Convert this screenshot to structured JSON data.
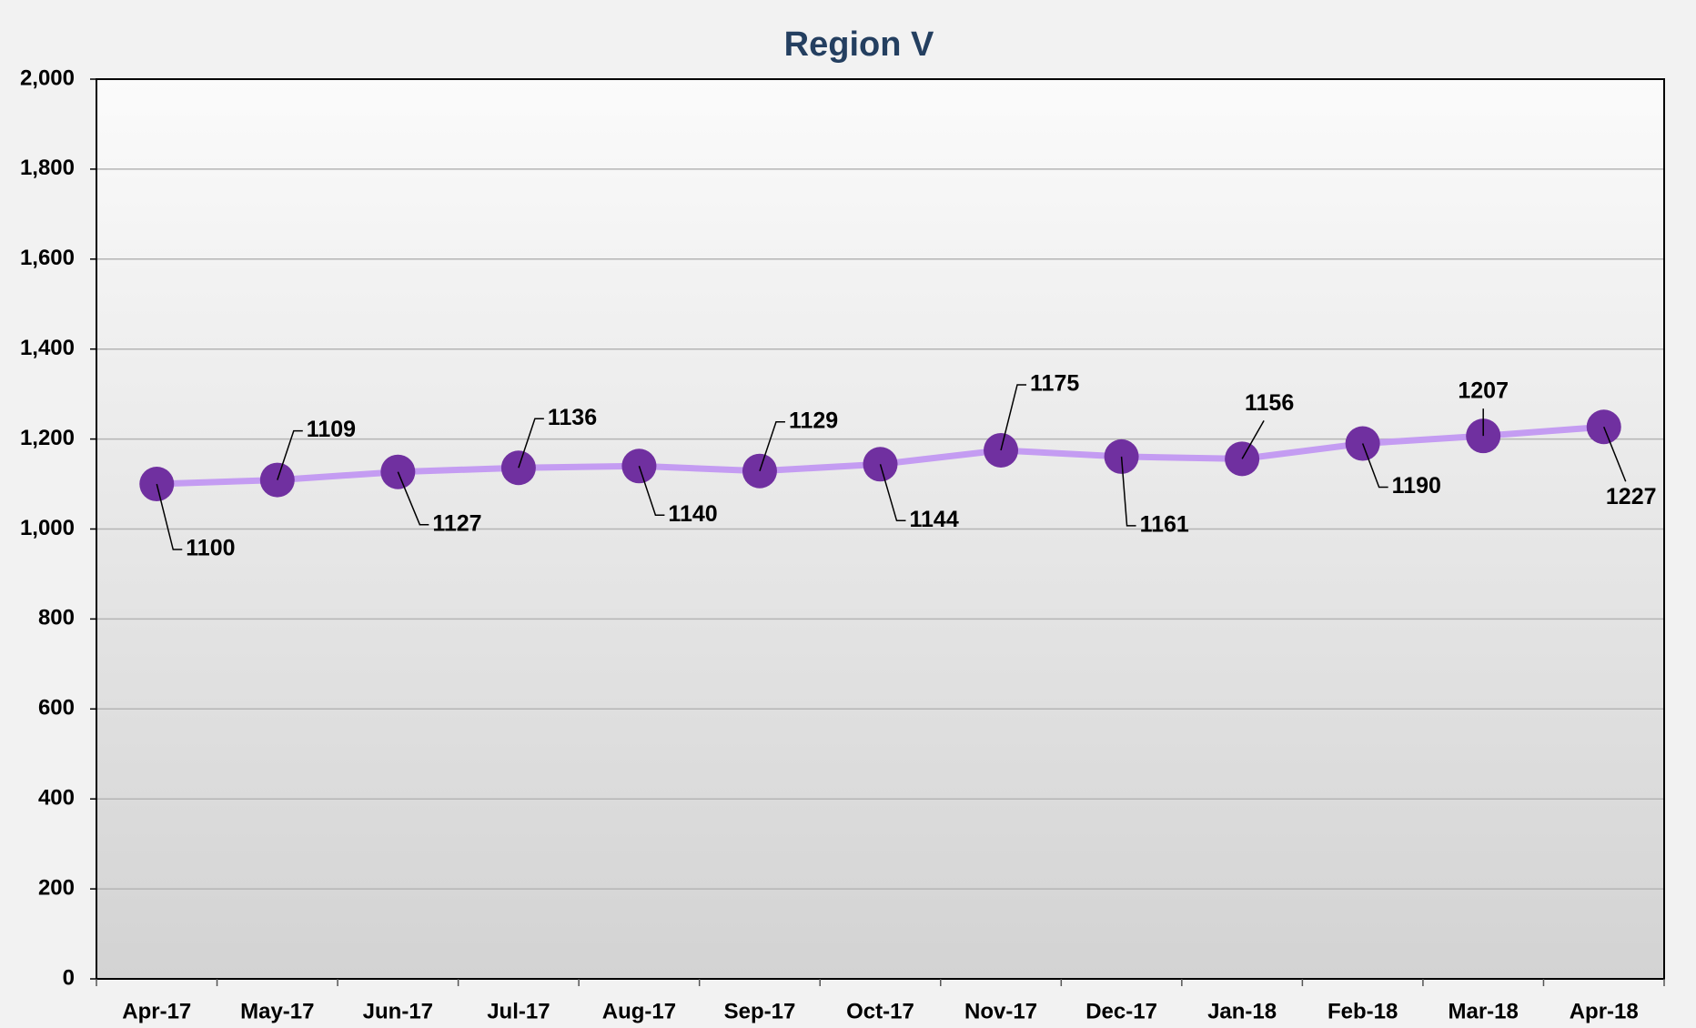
{
  "chart_data": {
    "type": "line",
    "title": "Region V",
    "categories": [
      "Apr-17",
      "May-17",
      "Jun-17",
      "Jul-17",
      "Aug-17",
      "Sep-17",
      "Oct-17",
      "Nov-17",
      "Dec-17",
      "Jan-18",
      "Feb-18",
      "Mar-18",
      "Apr-18"
    ],
    "series": [
      {
        "name": "Region V",
        "color": "#c49cf2",
        "marker_color": "#7030a0",
        "values": [
          1100,
          1109,
          1127,
          1136,
          1140,
          1129,
          1144,
          1175,
          1161,
          1156,
          1190,
          1207,
          1227
        ]
      }
    ],
    "ylim": [
      0,
      2000
    ],
    "yticks": [
      0,
      200,
      400,
      600,
      800,
      {
        "value": 1000,
        "label": "1,000"
      },
      {
        "value": 1200,
        "label": "1,200"
      },
      {
        "value": 1400,
        "label": "1,400"
      },
      {
        "value": 1600,
        "label": "1,600"
      },
      {
        "value": 1800,
        "label": "1,800"
      },
      {
        "value": 2000,
        "label": "2,000"
      }
    ],
    "grid": true
  }
}
